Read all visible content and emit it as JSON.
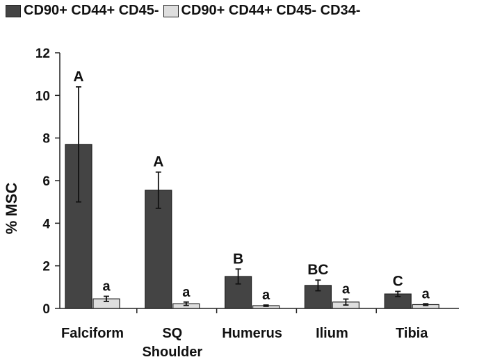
{
  "chart_data": {
    "type": "bar",
    "title": "",
    "xlabel": "",
    "ylabel": "% MSC",
    "ylim": [
      0,
      12
    ],
    "yticks": [
      0,
      2,
      4,
      6,
      8,
      10,
      12
    ],
    "grid": false,
    "legend_position": "top",
    "categories": [
      [
        "Falciform"
      ],
      [
        "SQ",
        "Shoulder"
      ],
      [
        "Humerus"
      ],
      [
        "Ilium"
      ],
      [
        "Tibia"
      ]
    ],
    "series": [
      {
        "name": "CD90+ CD44+ CD45-",
        "color": "#444444",
        "values": [
          7.7,
          5.55,
          1.5,
          1.08,
          0.68
        ],
        "errors": [
          2.7,
          0.85,
          0.35,
          0.25,
          0.12
        ],
        "labels": [
          "A",
          "A",
          "B",
          "BC",
          "C"
        ]
      },
      {
        "name": "CD90+ CD44+ CD45- CD34-",
        "color": "#dedede",
        "values": [
          0.45,
          0.22,
          0.13,
          0.3,
          0.18
        ],
        "errors": [
          0.12,
          0.08,
          0.03,
          0.14,
          0.04
        ],
        "labels": [
          "a",
          "a",
          "a",
          "a",
          "a"
        ]
      }
    ]
  }
}
